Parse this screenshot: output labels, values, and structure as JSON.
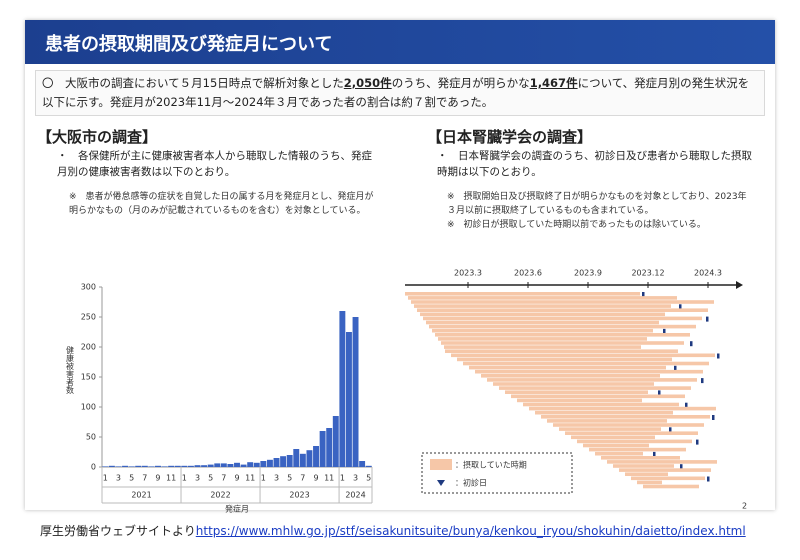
{
  "header": {
    "title": "患者の摂取期間及び発症月について"
  },
  "intro": {
    "text1": "〇　大阪市の調査において５月15日時点で解析対象とした",
    "underline1": "2,050件",
    "text2": "のうち、発症月が明らかな",
    "underline2": "1,467件",
    "text3": "について、発症月別の発生状況を以下に示す。発症月が2023年11月～2024年３月であった者の割合は約７割であった。"
  },
  "left": {
    "heading": "【大阪市の調査】",
    "bullet": "・　各保健所が主に健康被害者本人から聴取した情報のうち、発症月別の健康被害者数は以下のとおり。",
    "note": "※　患者が倦怠感等の症状を自覚した日の属する月を発症月とし、発症月が明らかなもの（月のみが記載されているものを含む）を対象としている。"
  },
  "right": {
    "heading": "【日本腎臓学会の調査】",
    "bullet": "・　日本腎臓学会の調査のうち、初診日及び患者から聴取した摂取時期は以下のとおり。",
    "notes": [
      "※　摂取開始日及び摂取終了日が明らかなものを対象としており、2023年３月以前に摂取終了しているものも含まれている。",
      "※　初診日が摂取していた時期以前であったものは除いている。"
    ],
    "timeline": [
      "2023.3",
      "2023.6",
      "2023.9",
      "2023.12",
      "2024.3"
    ],
    "legend": [
      "：摂取していた時期",
      "：初診日"
    ]
  },
  "chart_data": {
    "type": "bar",
    "y_label": "健康被害者数",
    "x_label": "発症月",
    "color": "#3a63c2",
    "categories": [
      "1",
      null,
      "3",
      null,
      "5",
      null,
      "7",
      null,
      "9",
      null,
      "11",
      null,
      "1",
      null,
      "3",
      null,
      "5",
      null,
      "7",
      null,
      "9",
      null,
      "11",
      null,
      "1",
      null,
      "3",
      null,
      "5",
      null,
      "7",
      null,
      "9",
      null,
      "11",
      null,
      "1",
      null,
      "3",
      null,
      "5"
    ],
    "year_labels": [
      "2021",
      "2022",
      "2023",
      "2024"
    ],
    "values": [
      1,
      2,
      1,
      2,
      1,
      2,
      2,
      1,
      2,
      1,
      2,
      2,
      2,
      2,
      3,
      3,
      4,
      6,
      6,
      5,
      7,
      4,
      8,
      7,
      10,
      12,
      15,
      18,
      20,
      30,
      22,
      28,
      35,
      60,
      65,
      85,
      260,
      225,
      250,
      10,
      2
    ],
    "ylim": [
      0,
      300
    ],
    "yticks": [
      0,
      50,
      100,
      150,
      200,
      250,
      300
    ]
  },
  "page_number": "2",
  "footer": {
    "source": "厚生労働省ウェブサイトより",
    "url": "https://www.mhlw.go.jp/stf/seisakunitsuite/bunya/kenkou_iryou/shokuhin/daietto/index.html"
  }
}
